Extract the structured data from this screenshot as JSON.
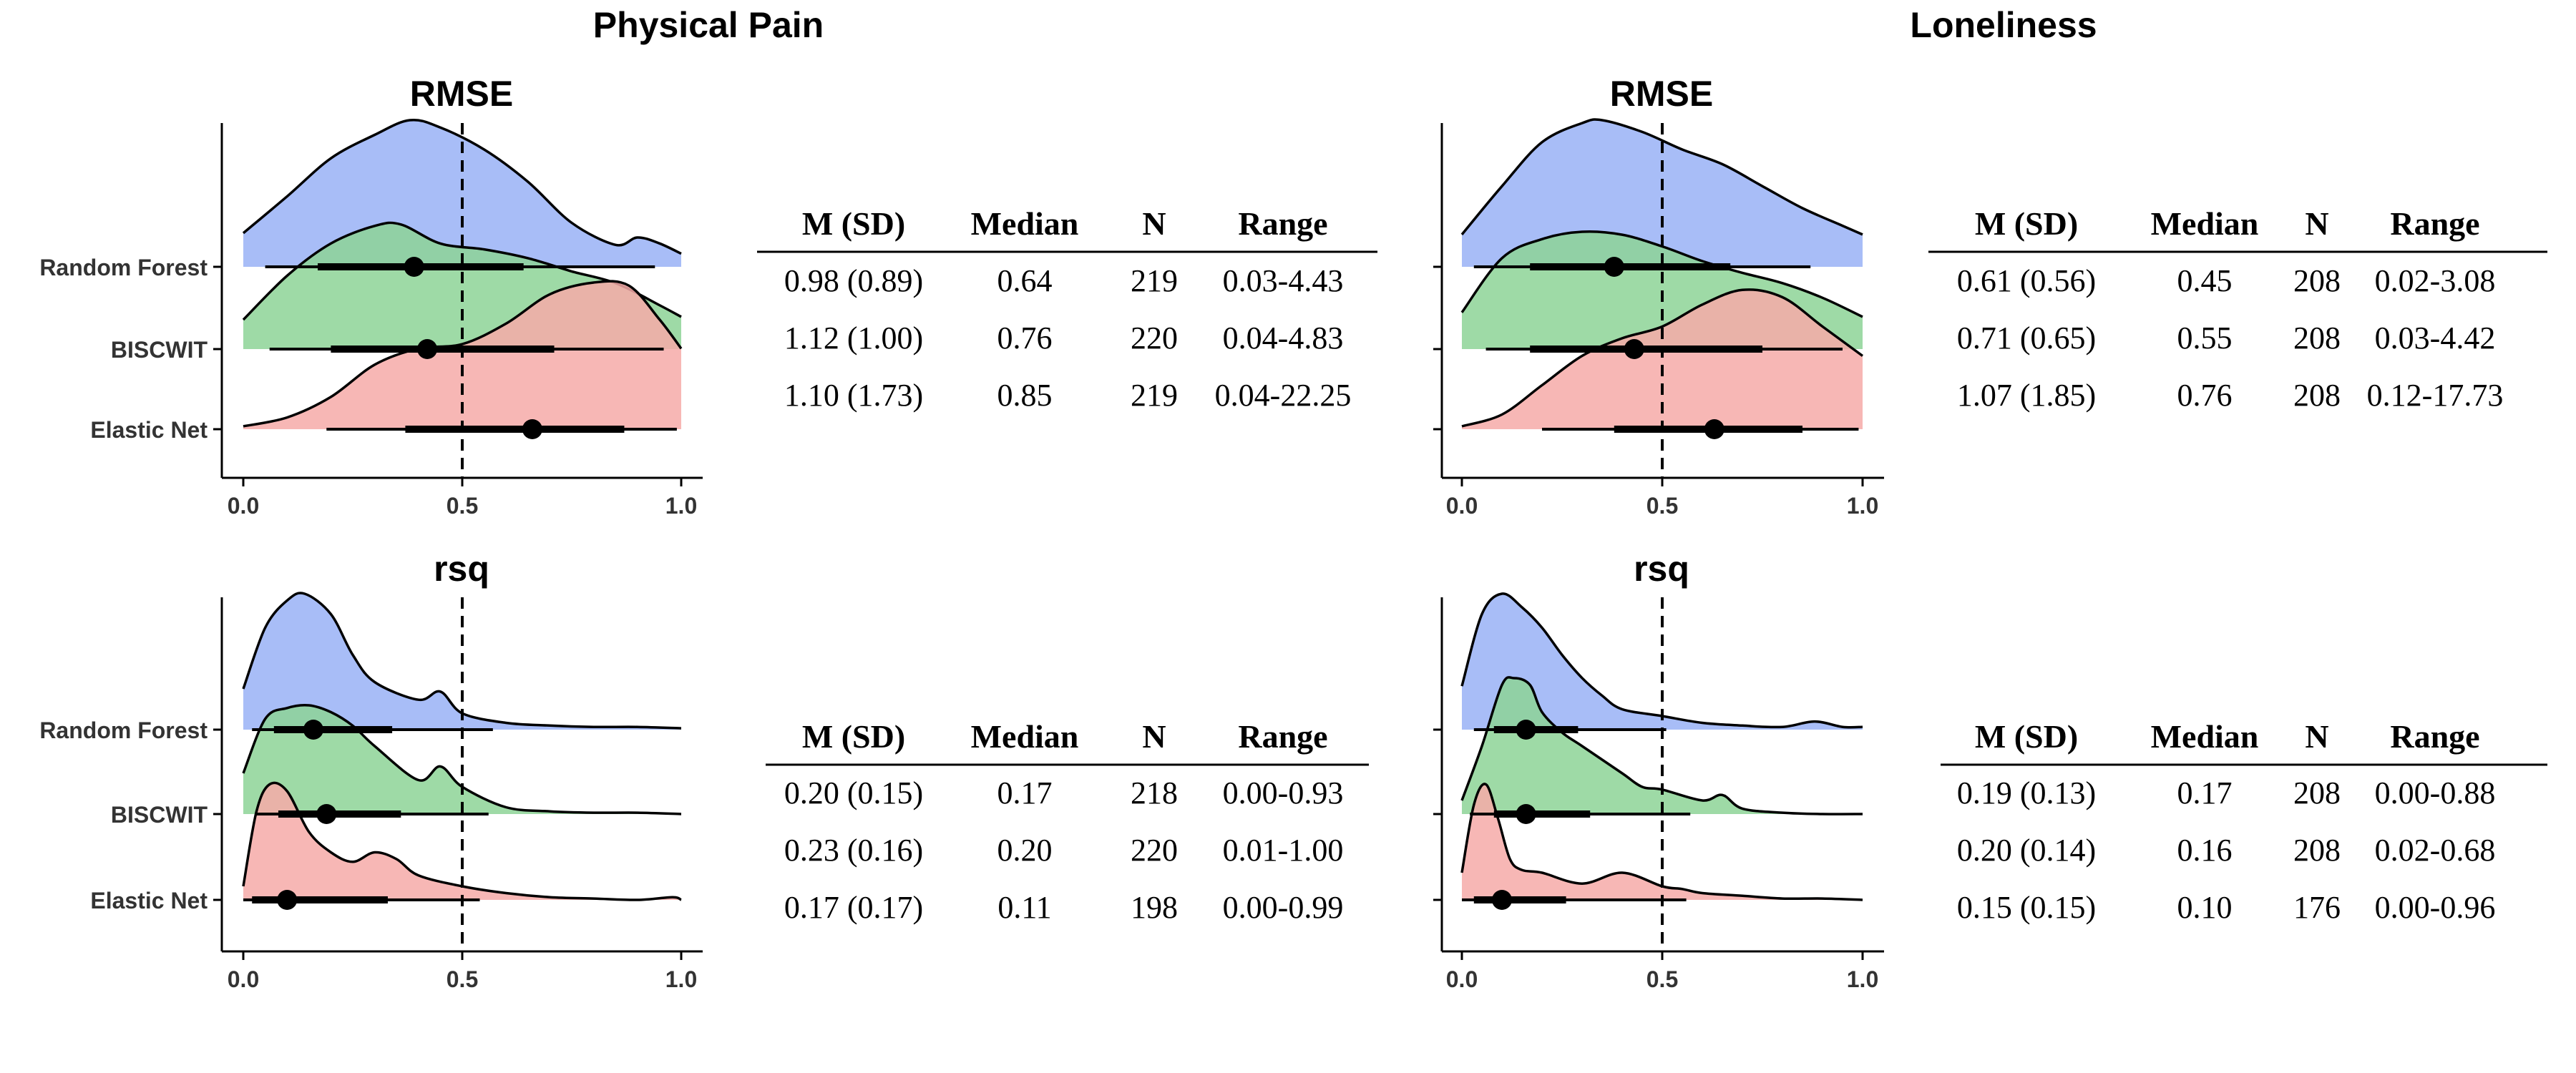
{
  "sections": [
    {
      "title": "Physical Pain"
    },
    {
      "title": "Loneliness"
    }
  ],
  "colors": {
    "random_forest": "#a8bdf7",
    "biscwit": "#8dd496",
    "elastic_net": "#f6aaa8",
    "overlap": "#bf9a7c",
    "ink": "#000000"
  },
  "chart_data": [
    {
      "type": "ridgeline",
      "section": "Physical Pain",
      "title": "RMSE",
      "models": [
        "Random Forest",
        "BISCWIT",
        "Elastic Net"
      ],
      "xlim": [
        -0.05,
        1.05
      ],
      "xticks": [
        "0.0",
        "0.5",
        "1.0"
      ],
      "reference_line": 0.5,
      "densities": [
        {
          "model": "Random Forest",
          "x": [
            0.0,
            0.1,
            0.2,
            0.3,
            0.38,
            0.45,
            0.55,
            0.65,
            0.75,
            0.85,
            0.9,
            0.95,
            1.0
          ],
          "y": [
            0.23,
            0.48,
            0.74,
            0.9,
            1.0,
            0.95,
            0.8,
            0.58,
            0.3,
            0.15,
            0.2,
            0.16,
            0.09
          ]
        },
        {
          "model": "BISCWIT",
          "x": [
            0.0,
            0.1,
            0.2,
            0.3,
            0.36,
            0.45,
            0.55,
            0.65,
            0.75,
            0.85,
            0.95,
            1.0
          ],
          "y": [
            0.2,
            0.5,
            0.72,
            0.84,
            0.85,
            0.72,
            0.68,
            0.62,
            0.53,
            0.45,
            0.3,
            0.22
          ]
        },
        {
          "model": "Elastic Net",
          "x": [
            0.0,
            0.1,
            0.2,
            0.3,
            0.4,
            0.5,
            0.6,
            0.7,
            0.8,
            0.88,
            0.95,
            1.0
          ],
          "y": [
            0.02,
            0.08,
            0.22,
            0.44,
            0.55,
            0.58,
            0.72,
            0.92,
            1.0,
            0.98,
            0.75,
            0.55
          ]
        }
      ],
      "intervals": [
        {
          "model": "Random Forest",
          "point": 0.39,
          "thick": [
            0.17,
            0.64
          ],
          "thin": [
            0.05,
            0.94
          ]
        },
        {
          "model": "BISCWIT",
          "point": 0.42,
          "thick": [
            0.2,
            0.71
          ],
          "thin": [
            0.06,
            0.96
          ]
        },
        {
          "model": "Elastic Net",
          "point": 0.66,
          "thick": [
            0.37,
            0.87
          ],
          "thin": [
            0.19,
            0.99
          ]
        }
      ],
      "table": {
        "headers": [
          "M (SD)",
          "Median",
          "N",
          "Range"
        ],
        "rows": [
          [
            "0.98 (0.89)",
            "0.64",
            "219",
            "0.03-4.43"
          ],
          [
            "1.12 (1.00)",
            "0.76",
            "220",
            "0.04-4.83"
          ],
          [
            "1.10 (1.73)",
            "0.85",
            "219",
            "0.04-22.25"
          ]
        ]
      }
    },
    {
      "type": "ridgeline",
      "section": "Loneliness",
      "title": "RMSE",
      "models": [
        "Random Forest",
        "BISCWIT",
        "Elastic Net"
      ],
      "xlim": [
        -0.05,
        1.05
      ],
      "xticks": [
        "0.0",
        "0.5",
        "1.0"
      ],
      "reference_line": 0.5,
      "densities": [
        {
          "model": "Random Forest",
          "x": [
            0.0,
            0.1,
            0.2,
            0.3,
            0.35,
            0.45,
            0.55,
            0.65,
            0.75,
            0.85,
            0.95,
            1.0
          ],
          "y": [
            0.22,
            0.55,
            0.85,
            0.98,
            1.0,
            0.92,
            0.8,
            0.7,
            0.55,
            0.4,
            0.28,
            0.22
          ]
        },
        {
          "model": "BISCWIT",
          "x": [
            0.0,
            0.1,
            0.2,
            0.3,
            0.4,
            0.5,
            0.6,
            0.7,
            0.8,
            0.9,
            1.0
          ],
          "y": [
            0.25,
            0.62,
            0.75,
            0.8,
            0.78,
            0.7,
            0.6,
            0.52,
            0.45,
            0.35,
            0.22
          ]
        },
        {
          "model": "Elastic Net",
          "x": [
            0.0,
            0.1,
            0.2,
            0.3,
            0.4,
            0.5,
            0.6,
            0.7,
            0.8,
            0.9,
            1.0
          ],
          "y": [
            0.02,
            0.1,
            0.3,
            0.5,
            0.62,
            0.7,
            0.85,
            0.95,
            0.9,
            0.7,
            0.5
          ]
        }
      ],
      "intervals": [
        {
          "model": "Random Forest",
          "point": 0.38,
          "thick": [
            0.17,
            0.67
          ],
          "thin": [
            0.03,
            0.87
          ]
        },
        {
          "model": "BISCWIT",
          "point": 0.43,
          "thick": [
            0.17,
            0.75
          ],
          "thin": [
            0.06,
            0.95
          ]
        },
        {
          "model": "Elastic Net",
          "point": 0.63,
          "thick": [
            0.38,
            0.85
          ],
          "thin": [
            0.2,
            0.99
          ]
        }
      ],
      "table": {
        "headers": [
          "M (SD)",
          "Median",
          "N",
          "Range"
        ],
        "rows": [
          [
            "0.61 (0.56)",
            "0.45",
            "208",
            "0.02-3.08"
          ],
          [
            "0.71 (0.65)",
            "0.55",
            "208",
            "0.03-4.42"
          ],
          [
            "1.07 (1.85)",
            "0.76",
            "208",
            "0.12-17.73"
          ]
        ]
      }
    },
    {
      "type": "ridgeline",
      "section": "Physical Pain",
      "title": "rsq",
      "models": [
        "Random Forest",
        "BISCWIT",
        "Elastic Net"
      ],
      "xlim": [
        -0.05,
        1.05
      ],
      "xticks": [
        "0.0",
        "0.5",
        "1.0"
      ],
      "reference_line": 0.5,
      "densities": [
        {
          "model": "Random Forest",
          "x": [
            0.0,
            0.05,
            0.1,
            0.14,
            0.2,
            0.25,
            0.3,
            0.4,
            0.45,
            0.5,
            0.6,
            0.7,
            0.8,
            0.9,
            1.0
          ],
          "y": [
            0.3,
            0.75,
            0.95,
            1.0,
            0.85,
            0.55,
            0.35,
            0.22,
            0.28,
            0.12,
            0.05,
            0.03,
            0.02,
            0.02,
            0.01
          ]
        },
        {
          "model": "BISCWIT",
          "x": [
            0.0,
            0.05,
            0.1,
            0.15,
            0.2,
            0.25,
            0.3,
            0.4,
            0.45,
            0.5,
            0.6,
            0.7,
            0.8,
            0.9,
            1.0
          ],
          "y": [
            0.3,
            0.7,
            0.78,
            0.8,
            0.75,
            0.65,
            0.5,
            0.25,
            0.35,
            0.2,
            0.05,
            0.02,
            0.01,
            0.01,
            0.0
          ]
        },
        {
          "model": "Elastic Net",
          "x": [
            0.0,
            0.03,
            0.06,
            0.1,
            0.15,
            0.2,
            0.25,
            0.3,
            0.35,
            0.4,
            0.5,
            0.6,
            0.7,
            0.8,
            0.9,
            0.98,
            1.0
          ],
          "y": [
            0.1,
            0.65,
            0.85,
            0.8,
            0.5,
            0.35,
            0.28,
            0.35,
            0.3,
            0.18,
            0.1,
            0.05,
            0.02,
            0.01,
            0.0,
            0.02,
            0.0
          ]
        }
      ],
      "intervals": [
        {
          "model": "Random Forest",
          "point": 0.16,
          "thick": [
            0.07,
            0.34
          ],
          "thin": [
            0.02,
            0.57
          ]
        },
        {
          "model": "BISCWIT",
          "point": 0.19,
          "thick": [
            0.08,
            0.36
          ],
          "thin": [
            0.03,
            0.56
          ]
        },
        {
          "model": "Elastic Net",
          "point": 0.1,
          "thick": [
            0.02,
            0.33
          ],
          "thin": [
            0.0,
            0.54
          ]
        }
      ],
      "table": {
        "headers": [
          "M (SD)",
          "Median",
          "N",
          "Range"
        ],
        "rows": [
          [
            "0.20 (0.15)",
            "0.17",
            "218",
            "0.00-0.93"
          ],
          [
            "0.23 (0.16)",
            "0.20",
            "220",
            "0.01-1.00"
          ],
          [
            "0.17 (0.17)",
            "0.11",
            "198",
            "0.00-0.99"
          ]
        ]
      }
    },
    {
      "type": "ridgeline",
      "section": "Loneliness",
      "title": "rsq",
      "models": [
        "Random Forest",
        "BISCWIT",
        "Elastic Net"
      ],
      "xlim": [
        -0.05,
        1.05
      ],
      "xticks": [
        "0.0",
        "0.5",
        "1.0"
      ],
      "reference_line": 0.5,
      "densities": [
        {
          "model": "Random Forest",
          "x": [
            0.0,
            0.05,
            0.1,
            0.15,
            0.2,
            0.25,
            0.3,
            0.35,
            0.4,
            0.5,
            0.6,
            0.7,
            0.8,
            0.88,
            0.95,
            1.0
          ],
          "y": [
            0.32,
            0.85,
            1.0,
            0.9,
            0.75,
            0.55,
            0.38,
            0.25,
            0.15,
            0.1,
            0.05,
            0.03,
            0.02,
            0.06,
            0.02,
            0.02
          ]
        },
        {
          "model": "BISCWIT",
          "x": [
            0.0,
            0.05,
            0.1,
            0.13,
            0.17,
            0.2,
            0.25,
            0.3,
            0.4,
            0.45,
            0.5,
            0.6,
            0.65,
            0.7,
            0.8,
            0.9,
            1.0
          ],
          "y": [
            0.1,
            0.5,
            0.95,
            1.0,
            0.95,
            0.75,
            0.6,
            0.5,
            0.3,
            0.2,
            0.18,
            0.1,
            0.14,
            0.04,
            0.01,
            0.0,
            0.0
          ]
        },
        {
          "model": "Elastic Net",
          "x": [
            0.0,
            0.03,
            0.06,
            0.09,
            0.12,
            0.15,
            0.2,
            0.3,
            0.4,
            0.5,
            0.55,
            0.6,
            0.7,
            0.8,
            0.9,
            1.0
          ],
          "y": [
            0.2,
            0.7,
            0.85,
            0.6,
            0.3,
            0.22,
            0.2,
            0.12,
            0.2,
            0.1,
            0.08,
            0.05,
            0.03,
            0.01,
            0.01,
            0.0
          ]
        }
      ],
      "intervals": [
        {
          "model": "Random Forest",
          "point": 0.16,
          "thick": [
            0.08,
            0.29
          ],
          "thin": [
            0.03,
            0.51
          ]
        },
        {
          "model": "BISCWIT",
          "point": 0.16,
          "thick": [
            0.08,
            0.32
          ],
          "thin": [
            0.02,
            0.57
          ]
        },
        {
          "model": "Elastic Net",
          "point": 0.1,
          "thick": [
            0.03,
            0.26
          ],
          "thin": [
            0.0,
            0.56
          ]
        }
      ],
      "table": {
        "headers": [
          "M (SD)",
          "Median",
          "N",
          "Range"
        ],
        "rows": [
          [
            "0.19 (0.13)",
            "0.17",
            "208",
            "0.00-0.88"
          ],
          [
            "0.20 (0.14)",
            "0.16",
            "208",
            "0.02-0.68"
          ],
          [
            "0.15 (0.15)",
            "0.10",
            "176",
            "0.00-0.96"
          ]
        ]
      }
    }
  ]
}
